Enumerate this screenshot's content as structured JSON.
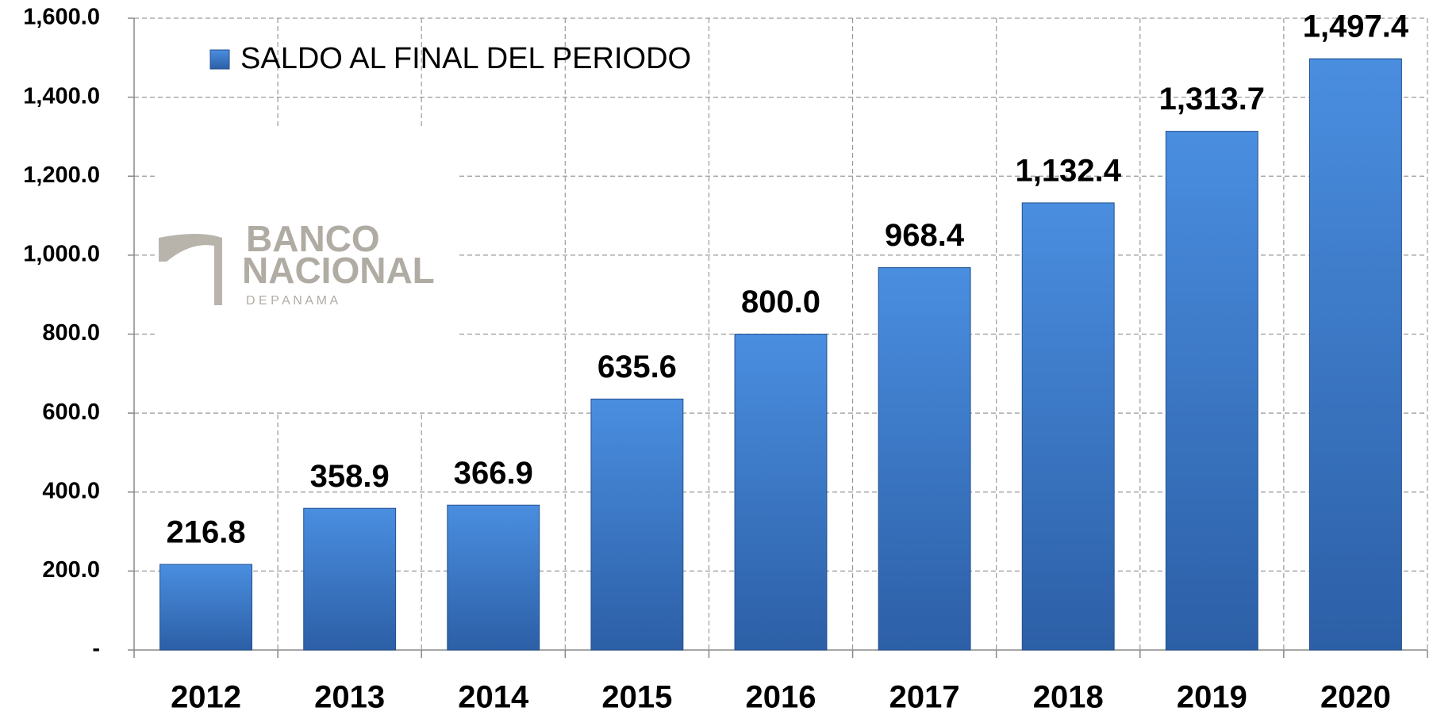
{
  "chart_data": {
    "type": "bar",
    "categories": [
      "2012",
      "2013",
      "2014",
      "2015",
      "2016",
      "2017",
      "2018",
      "2019",
      "2020"
    ],
    "series": [
      {
        "name": "SALDO AL FINAL DEL PERIODO",
        "color": "#3c78c8",
        "values": [
          216.8,
          358.9,
          366.9,
          635.6,
          800.0,
          968.4,
          1132.4,
          1313.7,
          1497.4
        ],
        "value_labels": [
          "216.8",
          "358.9",
          "366.9",
          "635.6",
          "800.0",
          "968.4",
          "1,132.4",
          "1,313.7",
          "1,497.4"
        ]
      }
    ],
    "ylim": [
      0,
      1600
    ],
    "yticks": [
      {
        "value": 0,
        "label": "-"
      },
      {
        "value": 200,
        "label": "200.0"
      },
      {
        "value": 400,
        "label": "400.0"
      },
      {
        "value": 600,
        "label": "600.0"
      },
      {
        "value": 800,
        "label": "800.0"
      },
      {
        "value": 1000,
        "label": "1,000.0"
      },
      {
        "value": 1200,
        "label": "1,200.0"
      },
      {
        "value": 1400,
        "label": "1,400.0"
      },
      {
        "value": 1600,
        "label": "1,600.0"
      }
    ],
    "grid": true,
    "legend": "top-left",
    "logo": {
      "line1": "BANCO",
      "line2": "NACIONAL",
      "line3": "D E   P A N A M A"
    }
  }
}
